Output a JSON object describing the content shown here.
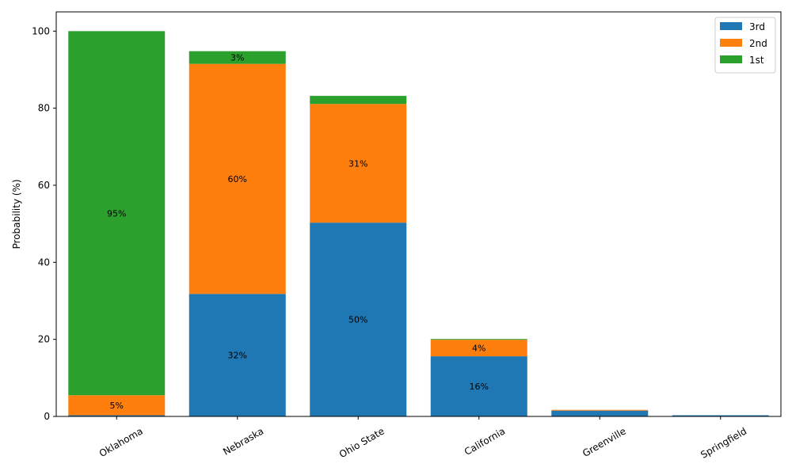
{
  "chart_data": {
    "type": "bar",
    "stacked": true,
    "categories": [
      "Oklahoma",
      "Nebraska",
      "Ohio State",
      "California",
      "Greenville",
      "Springfield"
    ],
    "series": [
      {
        "name": "3rd",
        "color": "#1f77b4",
        "values": [
          0.3,
          31.8,
          50.3,
          15.6,
          1.5,
          0.3
        ]
      },
      {
        "name": "2nd",
        "color": "#ff7f0e",
        "values": [
          5.2,
          59.7,
          30.8,
          4.3,
          0.2,
          0.0
        ]
      },
      {
        "name": "1st",
        "color": "#2ca02c",
        "values": [
          94.5,
          3.3,
          2.1,
          0.2,
          0.0,
          0.0
        ]
      }
    ],
    "data_labels": [
      {
        "category": 0,
        "series": 1,
        "text": "5%"
      },
      {
        "category": 0,
        "series": 2,
        "text": "95%"
      },
      {
        "category": 1,
        "series": 0,
        "text": "32%"
      },
      {
        "category": 1,
        "series": 1,
        "text": "60%"
      },
      {
        "category": 1,
        "series": 2,
        "text": "3%"
      },
      {
        "category": 2,
        "series": 0,
        "text": "50%"
      },
      {
        "category": 2,
        "series": 1,
        "text": "31%"
      },
      {
        "category": 3,
        "series": 0,
        "text": "16%"
      },
      {
        "category": 3,
        "series": 1,
        "text": "4%"
      }
    ],
    "title": "",
    "xlabel": "",
    "ylabel": "Probability (%)",
    "ylim": [
      0,
      105
    ],
    "yticks": [
      0,
      20,
      40,
      60,
      80,
      100
    ],
    "legend_position": "top-right",
    "legend_order": [
      0,
      1,
      2
    ],
    "grid": false
  }
}
